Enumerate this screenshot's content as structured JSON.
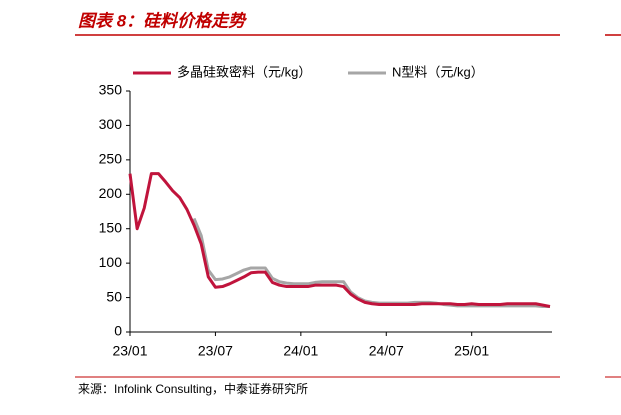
{
  "chart_data": {
    "type": "line",
    "title": "图表 8：硅料价格走势",
    "source": "来源：Infolink Consulting，中泰证券研究所",
    "categories": [
      "23/01",
      null,
      null,
      null,
      null,
      null,
      null,
      null,
      null,
      null,
      null,
      null,
      "23/07",
      null,
      null,
      null,
      null,
      null,
      null,
      null,
      null,
      null,
      null,
      null,
      "24/01",
      null,
      null,
      null,
      null,
      null,
      null,
      null,
      null,
      null,
      null,
      null,
      "24/07",
      null,
      null,
      null,
      null,
      null,
      null,
      null,
      null,
      null,
      null,
      null,
      "25/01",
      null,
      null,
      null,
      null,
      null,
      null,
      null,
      null,
      null,
      null,
      null
    ],
    "series": [
      {
        "name": "多晶硅致密料（元/kg）",
        "color": "#c0143c",
        "values": [
          230,
          150,
          180,
          230,
          230,
          218,
          205,
          195,
          178,
          155,
          128,
          80,
          65,
          66,
          70,
          75,
          80,
          86,
          87,
          87,
          72,
          68,
          66,
          66,
          66,
          66,
          68,
          68,
          68,
          68,
          66,
          55,
          48,
          43,
          41,
          40,
          40,
          40,
          40,
          40,
          40,
          41,
          41,
          41,
          41,
          41,
          40,
          40,
          41,
          40,
          40,
          40,
          40,
          41,
          41,
          41,
          41,
          41,
          39,
          37
        ]
      },
      {
        "name": "N型料（元/kg）",
        "color": "#a6a6a6",
        "values": [
          null,
          null,
          null,
          null,
          null,
          null,
          null,
          null,
          null,
          165,
          140,
          90,
          76,
          77,
          80,
          85,
          90,
          93,
          93,
          93,
          78,
          73,
          71,
          70,
          70,
          70,
          72,
          73,
          73,
          73,
          73,
          58,
          50,
          45,
          43,
          42,
          42,
          42,
          42,
          42,
          43,
          43,
          43,
          42,
          40,
          39,
          38,
          38,
          38,
          38,
          38,
          38,
          38,
          38,
          38,
          38,
          38,
          38,
          37,
          37
        ]
      }
    ],
    "ylim": [
      0,
      350
    ],
    "yticks": [
      0,
      50,
      100,
      150,
      200,
      250,
      300,
      350
    ],
    "grid": false
  }
}
